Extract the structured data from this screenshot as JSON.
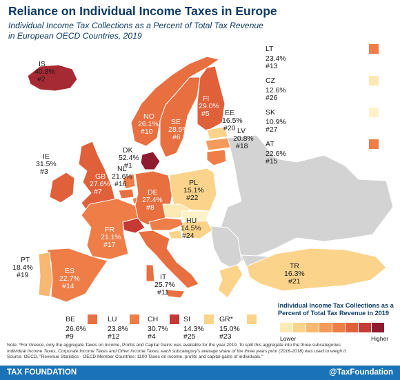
{
  "title": "Reliance on Individual Income Taxes in Europe",
  "subtitle_line1": "Individual Income Tax Collections as a Percent of Total Tax Revenue",
  "subtitle_line2": "in European OECD Countries, 2019",
  "countries": {
    "IS": {
      "code": "IS",
      "value": "40.8%",
      "rank": "#2"
    },
    "IE": {
      "code": "IE",
      "value": "31.5%",
      "rank": "#3"
    },
    "GB": {
      "code": "GB",
      "value": "27.6%",
      "rank": "#7"
    },
    "NO": {
      "code": "NO",
      "value": "26.1%",
      "rank": "#10"
    },
    "SE": {
      "code": "SE",
      "value": "28.5%",
      "rank": "#6"
    },
    "FI": {
      "code": "FI",
      "value": "29.0%",
      "rank": "#5"
    },
    "DK": {
      "code": "DK",
      "value": "52.4%",
      "rank": "#1"
    },
    "EE": {
      "code": "EE",
      "value": "16.5%",
      "rank": "#20"
    },
    "LV": {
      "code": "LV",
      "value": "20.8%",
      "rank": "#18"
    },
    "NL": {
      "code": "NL",
      "value": "21.6%",
      "rank": "#16"
    },
    "DE": {
      "code": "DE",
      "value": "27.4%",
      "rank": "#8"
    },
    "PL": {
      "code": "PL",
      "value": "15.1%",
      "rank": "#22"
    },
    "HU": {
      "code": "HU",
      "value": "14.5%",
      "rank": "#24"
    },
    "FR": {
      "code": "FR",
      "value": "21.1%",
      "rank": "#17"
    },
    "PT": {
      "code": "PT",
      "value": "18.4%",
      "rank": "#19"
    },
    "ES": {
      "code": "ES",
      "value": "22.7%",
      "rank": "#14"
    },
    "IT": {
      "code": "IT",
      "value": "25.7%",
      "rank": "#11"
    },
    "TR": {
      "code": "TR",
      "value": "16.3%",
      "rank": "#21"
    },
    "LT": {
      "code": "LT",
      "value": "23.4%",
      "rank": "#13"
    },
    "CZ": {
      "code": "CZ",
      "value": "12.6%",
      "rank": "#26"
    },
    "SK": {
      "code": "SK",
      "value": "10.9%",
      "rank": "#27"
    },
    "AT": {
      "code": "AT",
      "value": "22.6%",
      "rank": "#15"
    },
    "BE": {
      "code": "BE",
      "value": "26.6%",
      "rank": "#9"
    },
    "LU": {
      "code": "LU",
      "value": "23.8%",
      "rank": "#12"
    },
    "CH": {
      "code": "CH",
      "value": "30.7%",
      "rank": "#4"
    },
    "SI": {
      "code": "SI",
      "value": "14.3%",
      "rank": "#25"
    },
    "GR": {
      "code": "GR*",
      "value": "15.0%",
      "rank": "#23"
    }
  },
  "legend": {
    "title_line1": "Individual Income Tax Collections as a",
    "title_line2": "Percent of Total Tax Revenue in 2019",
    "low_label": "Lower",
    "high_label": "Higher",
    "colors": [
      "#fde9b3",
      "#fbd38a",
      "#f8b871",
      "#f49a5a",
      "#ee7d48",
      "#e0603a",
      "#c53a35",
      "#8e1b2e"
    ]
  },
  "colors": {
    "non_oecd": "#d3d3d3",
    "title": "#0d3a66",
    "footer_bg": "#1a73b8"
  },
  "note_line1": "Note: *For Greece, only the aggregate Taxes on Income, Profits and Capital Gains was available for the year 2019. To split this aggregate into the three subcategories",
  "note_line2": "Individual Income Taxes, Corporate Income Taxes and Other Income Taxes, each subcategory's average share of the three years prior (2016-2018) was used to weigh it.",
  "note_line3": "Source: OECD, \"Revenue Statistics - OECD Member Countries: 1100 Taxes on income, profits and capital gains of individuals.\"",
  "footer": {
    "left": "TAX FOUNDATION",
    "right": "@TaxFoundation"
  }
}
